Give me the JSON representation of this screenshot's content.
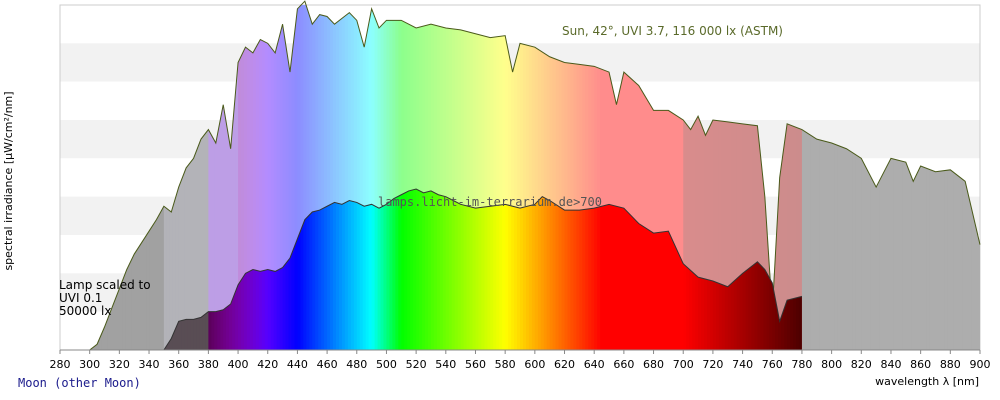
{
  "chart_data": {
    "type": "area",
    "title": "",
    "xlabel": "wavelength λ [nm]",
    "ylabel": "spectral irradiance [µW/cm²/nm]",
    "xlim": [
      280,
      900
    ],
    "ylim": [
      0,
      180
    ],
    "x_ticks": [
      280,
      300,
      320,
      340,
      360,
      380,
      400,
      420,
      440,
      460,
      480,
      500,
      520,
      540,
      560,
      580,
      600,
      620,
      640,
      660,
      680,
      700,
      720,
      740,
      760,
      780,
      800,
      820,
      840,
      860,
      880,
      900
    ],
    "grid": "horizontal bands",
    "annotations": {
      "sun": "Sun, 42°, UVI 3.7, 116 000 lx (ASTM)",
      "watermark": "lamps.licht-im-terrarium.de>700",
      "lamp_line1": "Lamp scaled to",
      "lamp_line2": "UVI 0.1",
      "lamp_line3": "50000 lx"
    },
    "series": [
      {
        "role": "sun",
        "x": [
          300,
          305,
          310,
          315,
          320,
          325,
          330,
          335,
          340,
          345,
          350,
          355,
          360,
          365,
          370,
          375,
          380,
          385,
          390,
          395,
          400,
          405,
          410,
          415,
          420,
          425,
          430,
          435,
          440,
          445,
          450,
          455,
          460,
          465,
          470,
          475,
          480,
          485,
          490,
          495,
          500,
          510,
          520,
          530,
          540,
          550,
          560,
          570,
          580,
          585,
          590,
          600,
          610,
          620,
          630,
          640,
          650,
          655,
          660,
          670,
          680,
          690,
          700,
          705,
          710,
          715,
          720,
          730,
          740,
          750,
          755,
          760,
          765,
          770,
          780,
          790,
          800,
          810,
          820,
          830,
          840,
          850,
          855,
          860,
          870,
          880,
          890,
          900
        ],
        "values": [
          0,
          3,
          12,
          22,
          32,
          42,
          50,
          56,
          62,
          68,
          75,
          72,
          85,
          95,
          100,
          110,
          115,
          108,
          128,
          105,
          150,
          158,
          155,
          162,
          160,
          155,
          170,
          145,
          178,
          182,
          170,
          175,
          174,
          170,
          173,
          176,
          172,
          158,
          178,
          168,
          172,
          172,
          168,
          170,
          168,
          167,
          165,
          163,
          164,
          145,
          160,
          158,
          153,
          150,
          149,
          148,
          145,
          128,
          145,
          138,
          125,
          125,
          120,
          115,
          122,
          112,
          120,
          119,
          118,
          117,
          80,
          20,
          90,
          118,
          115,
          110,
          108,
          105,
          100,
          85,
          100,
          98,
          88,
          96,
          93,
          94,
          88,
          55
        ]
      },
      {
        "role": "lamp",
        "x": [
          350,
          355,
          360,
          365,
          370,
          375,
          380,
          385,
          390,
          395,
          400,
          405,
          410,
          415,
          420,
          425,
          430,
          435,
          440,
          445,
          450,
          455,
          460,
          465,
          470,
          475,
          480,
          485,
          490,
          495,
          500,
          505,
          510,
          515,
          520,
          525,
          530,
          535,
          540,
          545,
          550,
          560,
          570,
          580,
          590,
          600,
          605,
          610,
          620,
          630,
          640,
          650,
          660,
          665,
          670,
          680,
          690,
          700,
          710,
          720,
          730,
          740,
          750,
          755,
          760,
          765,
          770,
          780
        ],
        "values": [
          0,
          6,
          15,
          16,
          16,
          17,
          20,
          20,
          21,
          24,
          34,
          40,
          42,
          41,
          42,
          41,
          43,
          48,
          58,
          68,
          72,
          73,
          75,
          77,
          76,
          78,
          77,
          75,
          76,
          74,
          76,
          79,
          81,
          83,
          84,
          82,
          83,
          81,
          80,
          78,
          76,
          74,
          75,
          76,
          74,
          76,
          80,
          78,
          73,
          73,
          74,
          76,
          74,
          70,
          66,
          61,
          62,
          45,
          38,
          36,
          33,
          40,
          46,
          42,
          35,
          15,
          26,
          28
        ]
      }
    ]
  },
  "footer": {
    "link_text": "Moon (other Moon)"
  }
}
